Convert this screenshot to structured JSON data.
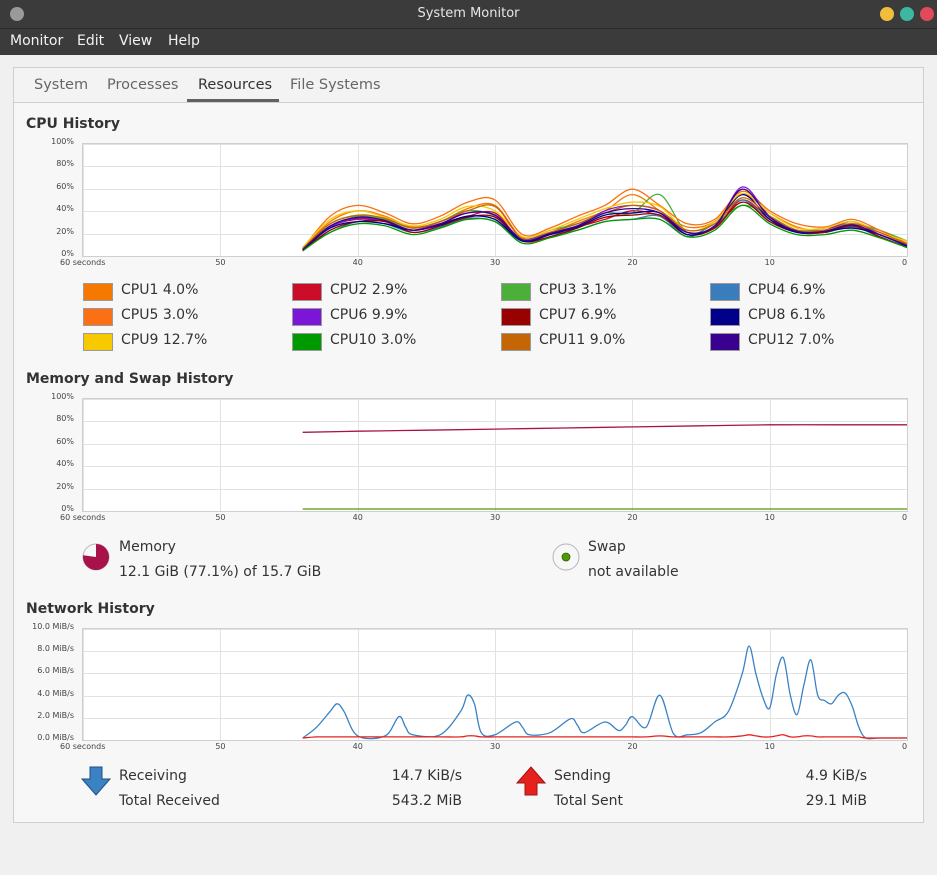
{
  "window": {
    "title": "System Monitor"
  },
  "menu": {
    "items": [
      "Monitor",
      "Edit",
      "View",
      "Help"
    ]
  },
  "tabs": [
    {
      "label": "System"
    },
    {
      "label": "Processes"
    },
    {
      "label": "Resources",
      "active": true
    },
    {
      "label": "File Systems"
    }
  ],
  "cpu": {
    "title": "CPU History",
    "legend": [
      {
        "label": "CPU1 4.0%",
        "color": "#f57900"
      },
      {
        "label": "CPU2 2.9%",
        "color": "#cc0d2a"
      },
      {
        "label": "CPU3 3.1%",
        "color": "#4caf3a"
      },
      {
        "label": "CPU4 6.9%",
        "color": "#3a7dbc"
      },
      {
        "label": "CPU5 3.0%",
        "color": "#fb7014"
      },
      {
        "label": "CPU6 9.9%",
        "color": "#7b16d9"
      },
      {
        "label": "CPU7 6.9%",
        "color": "#990000"
      },
      {
        "label": "CPU8 6.1%",
        "color": "#00008b"
      },
      {
        "label": "CPU9 12.7%",
        "color": "#f7c900"
      },
      {
        "label": "CPU10 3.0%",
        "color": "#009a00"
      },
      {
        "label": "CPU11 9.0%",
        "color": "#c46506"
      },
      {
        "label": "CPU12 7.0%",
        "color": "#3a008f"
      }
    ]
  },
  "memory": {
    "title": "Memory and Swap History",
    "memory_label": "Memory",
    "memory_value": "12.1 GiB (77.1%) of 15.7 GiB",
    "memory_fraction": 0.771,
    "memory_color": "#a8124a",
    "swap_label": "Swap",
    "swap_value": "not available",
    "swap_color": "#4e9a06"
  },
  "network": {
    "title": "Network History",
    "receiving_label": "Receiving",
    "receiving_value": "14.7 KiB/s",
    "total_received_label": "Total Received",
    "total_received_value": "543.2 MiB",
    "sending_label": "Sending",
    "sending_value": "4.9 KiB/s",
    "total_sent_label": "Total Sent",
    "total_sent_value": "29.1 MiB",
    "receive_color": "#3a82c4",
    "send_color": "#e8201c"
  },
  "chart_data": [
    {
      "type": "line",
      "title": "CPU History",
      "x_ticks": [
        "60 seconds",
        "50",
        "40",
        "30",
        "20",
        "10",
        "0"
      ],
      "y_ticks": [
        "100%",
        "80%",
        "60%",
        "40%",
        "20%",
        "0%"
      ],
      "x": [
        44,
        42,
        40,
        38,
        36,
        34,
        32,
        30,
        28,
        26,
        24,
        22,
        20,
        18,
        16,
        14,
        12,
        10,
        8,
        6,
        4,
        2,
        0
      ],
      "series": [
        {
          "name": "CPU1 4.0%",
          "values": [
            5,
            30,
            40,
            35,
            25,
            30,
            42,
            45,
            15,
            20,
            30,
            40,
            55,
            40,
            25,
            30,
            55,
            38,
            25,
            22,
            30,
            20,
            10
          ]
        },
        {
          "name": "CPU2 2.9%",
          "values": [
            3,
            25,
            32,
            30,
            22,
            28,
            35,
            38,
            12,
            18,
            25,
            32,
            40,
            35,
            18,
            25,
            50,
            32,
            20,
            20,
            25,
            18,
            8
          ]
        },
        {
          "name": "CPU3 3.1%",
          "values": [
            4,
            28,
            35,
            32,
            24,
            30,
            40,
            35,
            14,
            22,
            28,
            38,
            38,
            55,
            20,
            28,
            45,
            35,
            22,
            24,
            28,
            22,
            12
          ]
        },
        {
          "name": "CPU4 6.9%",
          "values": [
            6,
            20,
            30,
            28,
            20,
            25,
            33,
            30,
            12,
            18,
            22,
            30,
            32,
            35,
            16,
            30,
            50,
            30,
            20,
            20,
            25,
            16,
            6
          ]
        },
        {
          "name": "CPU5 3.0%",
          "values": [
            5,
            35,
            45,
            38,
            28,
            35,
            48,
            50,
            18,
            24,
            35,
            45,
            60,
            45,
            28,
            32,
            58,
            40,
            28,
            25,
            32,
            22,
            10
          ]
        },
        {
          "name": "CPU6 9.9%",
          "values": [
            4,
            25,
            33,
            30,
            22,
            30,
            38,
            36,
            14,
            20,
            26,
            40,
            45,
            40,
            20,
            25,
            62,
            35,
            22,
            22,
            30,
            18,
            8
          ]
        },
        {
          "name": "CPU7 6.9%",
          "values": [
            3,
            22,
            30,
            30,
            20,
            26,
            34,
            34,
            12,
            16,
            24,
            34,
            36,
            36,
            18,
            24,
            48,
            30,
            20,
            20,
            26,
            16,
            6
          ]
        },
        {
          "name": "CPU8 6.1%",
          "values": [
            4,
            24,
            30,
            28,
            22,
            27,
            35,
            32,
            12,
            18,
            25,
            36,
            38,
            38,
            18,
            26,
            55,
            32,
            20,
            21,
            24,
            18,
            7
          ]
        },
        {
          "name": "CPU9 12.7%",
          "values": [
            6,
            32,
            40,
            34,
            26,
            32,
            44,
            40,
            16,
            22,
            32,
            42,
            48,
            44,
            22,
            30,
            56,
            38,
            24,
            24,
            30,
            20,
            12
          ]
        },
        {
          "name": "CPU10 3.0%",
          "values": [
            3,
            20,
            28,
            26,
            18,
            24,
            32,
            30,
            10,
            15,
            22,
            30,
            32,
            32,
            16,
            22,
            45,
            28,
            18,
            18,
            22,
            15,
            6
          ]
        },
        {
          "name": "CPU11 9.0%",
          "values": [
            5,
            28,
            36,
            33,
            24,
            30,
            40,
            44,
            14,
            20,
            28,
            38,
            45,
            40,
            22,
            28,
            52,
            35,
            22,
            22,
            28,
            20,
            9
          ]
        },
        {
          "name": "CPU12 7.0%",
          "values": [
            4,
            26,
            34,
            31,
            22,
            28,
            38,
            36,
            13,
            19,
            26,
            38,
            42,
            38,
            20,
            26,
            60,
            34,
            21,
            21,
            27,
            18,
            8
          ]
        }
      ]
    },
    {
      "type": "line",
      "title": "Memory and Swap History",
      "x_ticks": [
        "60 seconds",
        "50",
        "40",
        "30",
        "20",
        "10",
        "0"
      ],
      "y_ticks": [
        "100%",
        "80%",
        "60%",
        "40%",
        "20%",
        "0%"
      ],
      "x": [
        44,
        40,
        35,
        30,
        25,
        20,
        15,
        10,
        5,
        0
      ],
      "series": [
        {
          "name": "Memory",
          "values": [
            71,
            72,
            73,
            74,
            75,
            76,
            77,
            78,
            78,
            78
          ]
        },
        {
          "name": "Swap",
          "values": [
            0,
            0,
            0,
            0,
            0,
            0,
            0,
            0,
            0,
            0
          ]
        }
      ]
    },
    {
      "type": "line",
      "title": "Network History",
      "x_ticks": [
        "60 seconds",
        "50",
        "40",
        "30",
        "20",
        "10",
        "0"
      ],
      "y_ticks": [
        "10.0 MiB/s",
        "8.0 MiB/s",
        "6.0 MiB/s",
        "4.0 MiB/s",
        "2.0 MiB/s",
        "0.0 MiB/s"
      ],
      "x": [
        44,
        43,
        42,
        41.5,
        41,
        40,
        38,
        37,
        36.5,
        36,
        34,
        32.5,
        32,
        31.5,
        31,
        30,
        28.5,
        28,
        27.5,
        26,
        24.5,
        24,
        23.5,
        22,
        21,
        20.5,
        20,
        19,
        18,
        17,
        16,
        15,
        14,
        13,
        12,
        11.5,
        11,
        10.5,
        10,
        9.5,
        9,
        8.5,
        8,
        7.5,
        7,
        6.5,
        6,
        5.5,
        5,
        4.5,
        4,
        3.5,
        3,
        2,
        0
      ],
      "series": [
        {
          "name": "Receiving",
          "values": [
            0,
            1.0,
            2.5,
            3.2,
            2.5,
            0.2,
            0.2,
            2.0,
            1.0,
            0.3,
            0.3,
            2.5,
            4.0,
            3.2,
            0.5,
            0.3,
            1.5,
            1.0,
            0.3,
            0.5,
            1.8,
            1.2,
            0.5,
            1.5,
            0.7,
            1.2,
            2.0,
            1.0,
            4.0,
            0.4,
            0.3,
            0.5,
            1.5,
            2.5,
            6.0,
            8.6,
            6.0,
            3.8,
            2.8,
            6.0,
            7.5,
            4.0,
            2.2,
            5.0,
            7.3,
            4.0,
            3.5,
            3.2,
            4.0,
            4.2,
            3.0,
            1.0,
            0,
            0,
            0
          ]
        },
        {
          "name": "Sending",
          "values": [
            0,
            0.1,
            0.1,
            0.1,
            0.1,
            0.1,
            0.1,
            0.1,
            0.1,
            0.1,
            0.1,
            0.1,
            0.2,
            0.2,
            0.1,
            0.1,
            0.1,
            0.1,
            0.1,
            0.1,
            0.1,
            0.1,
            0.1,
            0.1,
            0.1,
            0.1,
            0.1,
            0.1,
            0.2,
            0.1,
            0.1,
            0.1,
            0.1,
            0.1,
            0.2,
            0.3,
            0.2,
            0.1,
            0.1,
            0.2,
            0.3,
            0.1,
            0.1,
            0.2,
            0.2,
            0.1,
            0.1,
            0.1,
            0.1,
            0.1,
            0.1,
            0.1,
            0,
            0,
            0
          ]
        }
      ]
    }
  ]
}
